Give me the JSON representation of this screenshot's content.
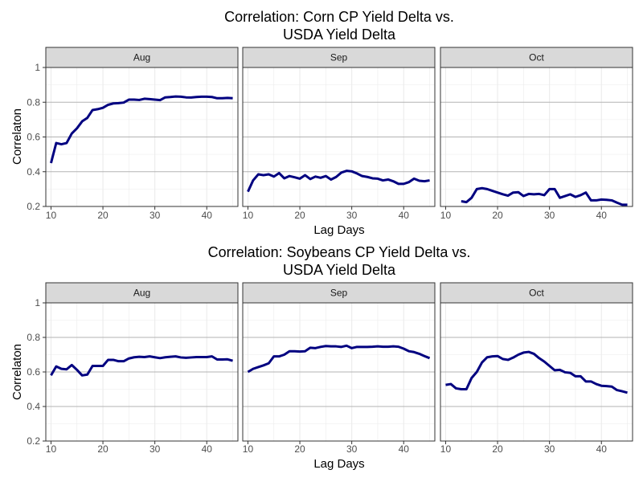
{
  "chart_data": [
    {
      "type": "line",
      "title": "Correlation: Corn CP Yield Delta vs.\nUSDA Yield Delta",
      "xlabel": "Lag Days",
      "ylabel": "Correlaton",
      "xlim": [
        9,
        46
      ],
      "ylim": [
        0.2,
        1.0
      ],
      "xticks": [
        10,
        20,
        30,
        40
      ],
      "yticks": [
        0.2,
        0.4,
        0.6,
        0.8,
        1.0
      ],
      "ytick_labels": [
        "0.2",
        "0.4",
        "0.6",
        "0.8",
        "1"
      ],
      "grid": true,
      "line_color": "#000080",
      "facets": [
        {
          "label": "Aug",
          "x": [
            10,
            11,
            12,
            13,
            14,
            15,
            16,
            17,
            18,
            19,
            20,
            21,
            22,
            23,
            24,
            25,
            26,
            27,
            28,
            29,
            30,
            31,
            32,
            33,
            34,
            35,
            36,
            37,
            38,
            39,
            40,
            41,
            42,
            43,
            44,
            45
          ],
          "y": [
            0.45,
            0.565,
            0.558,
            0.565,
            0.62,
            0.65,
            0.69,
            0.71,
            0.755,
            0.76,
            0.768,
            0.785,
            0.793,
            0.795,
            0.798,
            0.815,
            0.815,
            0.813,
            0.82,
            0.818,
            0.815,
            0.812,
            0.828,
            0.83,
            0.833,
            0.832,
            0.828,
            0.827,
            0.83,
            0.832,
            0.832,
            0.83,
            0.823,
            0.823,
            0.825,
            0.823
          ]
        },
        {
          "label": "Sep",
          "x": [
            10,
            11,
            12,
            13,
            14,
            15,
            16,
            17,
            18,
            19,
            20,
            21,
            22,
            23,
            24,
            25,
            26,
            27,
            28,
            29,
            30,
            31,
            32,
            33,
            34,
            35,
            36,
            37,
            38,
            39,
            40,
            41,
            42,
            43,
            44,
            45
          ],
          "y": [
            0.285,
            0.35,
            0.385,
            0.38,
            0.385,
            0.372,
            0.392,
            0.362,
            0.375,
            0.368,
            0.36,
            0.38,
            0.358,
            0.372,
            0.365,
            0.375,
            0.355,
            0.37,
            0.395,
            0.405,
            0.402,
            0.39,
            0.375,
            0.37,
            0.362,
            0.36,
            0.35,
            0.355,
            0.345,
            0.33,
            0.33,
            0.34,
            0.36,
            0.348,
            0.345,
            0.35
          ]
        },
        {
          "label": "Oct",
          "x": [
            13,
            14,
            15,
            16,
            17,
            18,
            19,
            20,
            21,
            22,
            23,
            24,
            25,
            26,
            27,
            28,
            29,
            30,
            31,
            32,
            33,
            34,
            35,
            36,
            37,
            38,
            39,
            40,
            41,
            42,
            43,
            44,
            45
          ],
          "y": [
            0.23,
            0.225,
            0.25,
            0.3,
            0.305,
            0.3,
            0.29,
            0.28,
            0.27,
            0.262,
            0.28,
            0.282,
            0.26,
            0.272,
            0.27,
            0.272,
            0.265,
            0.3,
            0.3,
            0.25,
            0.26,
            0.27,
            0.255,
            0.265,
            0.28,
            0.235,
            0.235,
            0.24,
            0.238,
            0.235,
            0.222,
            0.21,
            0.21
          ]
        }
      ]
    },
    {
      "type": "line",
      "title": "Correlation: Soybeans CP Yield Delta vs.\nUSDA Yield Delta",
      "xlabel": "Lag Days",
      "ylabel": "Correlaton",
      "xlim": [
        9,
        46
      ],
      "ylim": [
        0.2,
        1.0
      ],
      "xticks": [
        10,
        20,
        30,
        40
      ],
      "yticks": [
        0.2,
        0.4,
        0.6,
        0.8,
        1.0
      ],
      "ytick_labels": [
        "0.2",
        "0.4",
        "0.6",
        "0.8",
        "1"
      ],
      "grid": true,
      "line_color": "#000080",
      "facets": [
        {
          "label": "Aug",
          "x": [
            10,
            11,
            12,
            13,
            14,
            15,
            16,
            17,
            18,
            19,
            20,
            21,
            22,
            23,
            24,
            25,
            26,
            27,
            28,
            29,
            30,
            31,
            32,
            33,
            34,
            35,
            36,
            37,
            38,
            39,
            40,
            41,
            42,
            43,
            44,
            45
          ],
          "y": [
            0.58,
            0.632,
            0.618,
            0.615,
            0.64,
            0.612,
            0.58,
            0.585,
            0.635,
            0.635,
            0.635,
            0.67,
            0.67,
            0.662,
            0.662,
            0.678,
            0.685,
            0.688,
            0.686,
            0.69,
            0.685,
            0.68,
            0.685,
            0.688,
            0.69,
            0.684,
            0.682,
            0.684,
            0.686,
            0.686,
            0.686,
            0.69,
            0.672,
            0.672,
            0.673,
            0.665
          ]
        },
        {
          "label": "Sep",
          "x": [
            10,
            11,
            12,
            13,
            14,
            15,
            16,
            17,
            18,
            19,
            20,
            21,
            22,
            23,
            24,
            25,
            26,
            27,
            28,
            29,
            30,
            31,
            32,
            33,
            34,
            35,
            36,
            37,
            38,
            39,
            40,
            41,
            42,
            43,
            44,
            45
          ],
          "y": [
            0.6,
            0.618,
            0.628,
            0.638,
            0.65,
            0.69,
            0.69,
            0.7,
            0.72,
            0.72,
            0.718,
            0.72,
            0.74,
            0.738,
            0.745,
            0.75,
            0.748,
            0.748,
            0.745,
            0.752,
            0.738,
            0.745,
            0.745,
            0.745,
            0.746,
            0.748,
            0.746,
            0.746,
            0.748,
            0.746,
            0.735,
            0.72,
            0.715,
            0.705,
            0.692,
            0.68
          ]
        },
        {
          "label": "Oct",
          "x": [
            10,
            11,
            12,
            13,
            14,
            15,
            16,
            17,
            18,
            19,
            20,
            21,
            22,
            23,
            24,
            25,
            26,
            27,
            28,
            29,
            30,
            31,
            32,
            33,
            34,
            35,
            36,
            37,
            38,
            39,
            40,
            41,
            42,
            43,
            44,
            45
          ],
          "y": [
            0.525,
            0.53,
            0.505,
            0.5,
            0.5,
            0.565,
            0.6,
            0.655,
            0.685,
            0.69,
            0.692,
            0.675,
            0.67,
            0.683,
            0.7,
            0.712,
            0.716,
            0.705,
            0.68,
            0.66,
            0.635,
            0.61,
            0.612,
            0.598,
            0.595,
            0.575,
            0.575,
            0.545,
            0.545,
            0.53,
            0.52,
            0.518,
            0.515,
            0.495,
            0.488,
            0.48
          ]
        }
      ]
    }
  ]
}
